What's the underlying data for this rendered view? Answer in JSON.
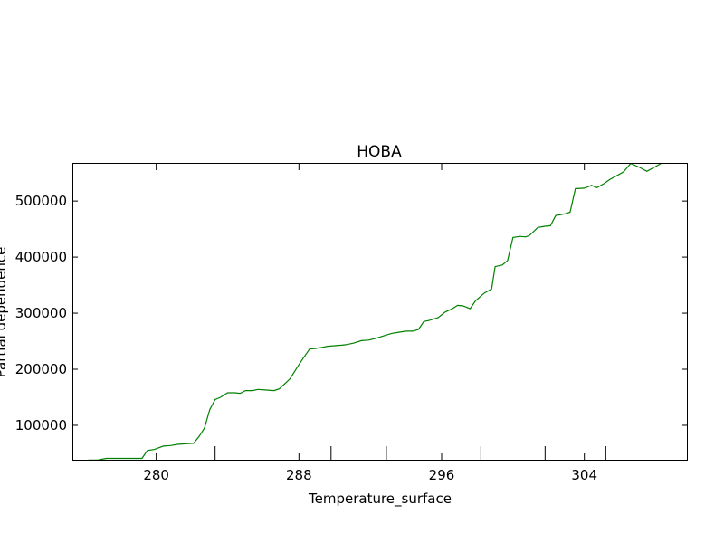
{
  "chart_data": {
    "type": "line",
    "title": "HOBA",
    "xlabel": "Temperature_surface",
    "ylabel": "Partial dependence",
    "xlim": [
      275.3,
      309.8
    ],
    "ylim": [
      37000,
      568000
    ],
    "x_ticks": [
      280,
      288,
      296,
      304
    ],
    "x_tick_labels": [
      "280",
      "288",
      "296",
      "304"
    ],
    "x_minor_ticks": [
      283.3,
      289.8,
      292.9,
      298.2,
      301.8,
      305.2
    ],
    "y_ticks": [
      100000,
      200000,
      300000,
      400000,
      500000
    ],
    "y_tick_labels": [
      "100000",
      "200000",
      "300000",
      "400000",
      "500000"
    ],
    "grid": false,
    "legend": "none",
    "series": [
      {
        "color": "#008000",
        "x": [
          276.2,
          276.7,
          277.2,
          277.6,
          278.2,
          278.6,
          279.0,
          279.2,
          279.5,
          279.9,
          280.4,
          280.8,
          281.2,
          281.6,
          282.1,
          282.4,
          282.7,
          283.0,
          283.3,
          283.6,
          284.0,
          284.4,
          284.7,
          285.0,
          285.4,
          285.7,
          286.1,
          286.6,
          286.9,
          287.3,
          287.5,
          287.9,
          288.2,
          288.6,
          288.9,
          289.3,
          289.6,
          290.0,
          290.4,
          290.7,
          291.1,
          291.5,
          291.9,
          292.3,
          292.6,
          292.9,
          293.2,
          293.6,
          294.0,
          294.4,
          294.7,
          295.0,
          295.3,
          295.8,
          296.2,
          296.6,
          296.9,
          297.2,
          297.6,
          297.9,
          298.4,
          298.8,
          299.0,
          299.4,
          299.7,
          300.0,
          300.4,
          300.7,
          300.9,
          301.4,
          301.8,
          302.1,
          302.4,
          302.9,
          303.2,
          303.5,
          304.0,
          304.4,
          304.7,
          305.1,
          305.4,
          305.8,
          306.2,
          306.6,
          307.1,
          307.5,
          307.9,
          308.3
        ],
        "y": [
          38000,
          38000,
          41000,
          41000,
          41000,
          41000,
          41000,
          41000,
          55000,
          57000,
          63000,
          64000,
          66000,
          67000,
          68000,
          80000,
          95000,
          128000,
          146000,
          150000,
          158000,
          158000,
          157000,
          162000,
          162000,
          164000,
          163000,
          162000,
          165000,
          177000,
          183000,
          203000,
          218000,
          236000,
          237000,
          239000,
          241000,
          242000,
          243000,
          244000,
          247000,
          251000,
          252000,
          255000,
          258000,
          261000,
          264000,
          266000,
          268000,
          268000,
          271000,
          285000,
          287000,
          292000,
          302000,
          308000,
          314000,
          313000,
          308000,
          322000,
          336000,
          343000,
          383000,
          386000,
          394000,
          435000,
          437000,
          436000,
          438000,
          453000,
          455000,
          456000,
          474000,
          477000,
          480000,
          522000,
          523000,
          528000,
          524000,
          531000,
          538000,
          545000,
          552000,
          567000,
          560000,
          553000,
          560000,
          567000
        ]
      }
    ]
  }
}
